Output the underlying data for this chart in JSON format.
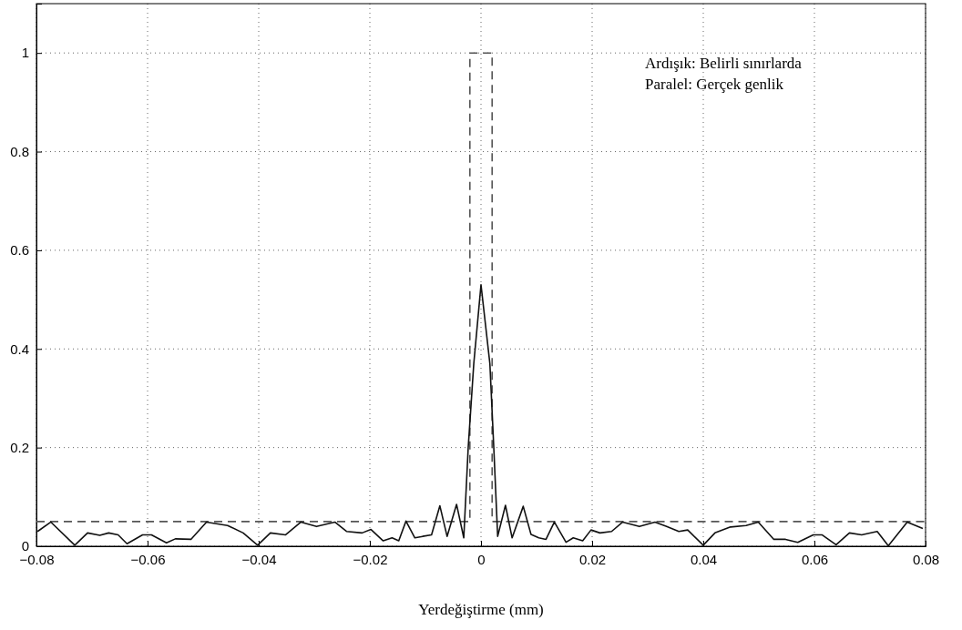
{
  "chart_data": {
    "type": "line",
    "xlabel": "Yerdeğiştirme (mm)",
    "annotations": [
      "Ardışık: Belirli sınırlarda",
      "Paralel: Gerçek genlik"
    ],
    "xlim": [
      -0.08,
      0.08
    ],
    "xticks": [
      -0.08,
      -0.06,
      -0.04,
      -0.02,
      0,
      0.02,
      0.04,
      0.06,
      0.08
    ],
    "ylim": [
      0,
      1.1
    ],
    "yticks": [
      0,
      0.2,
      0.4,
      0.6,
      0.8,
      1
    ],
    "grid": true,
    "series": [
      {
        "color": "#555555",
        "line_style": "dashed",
        "x": [
          -0.08,
          -0.002,
          -0.002,
          0.002,
          0.002,
          0.08
        ],
        "values": [
          0.05,
          0.05,
          1,
          1,
          0.05,
          0.05
        ]
      },
      {
        "color": "#111111",
        "line_style": "solid",
        "x": [
          -0.0798,
          -0.0774,
          -0.0731,
          -0.0708,
          -0.0686,
          -0.067,
          -0.0653,
          -0.0637,
          -0.0609,
          -0.0593,
          -0.0566,
          -0.055,
          -0.0522,
          -0.0494,
          -0.0456,
          -0.0428,
          -0.0402,
          -0.0379,
          -0.0352,
          -0.0324,
          -0.0296,
          -0.0263,
          -0.0242,
          -0.0214,
          -0.0198,
          -0.0176,
          -0.016,
          -0.0148,
          -0.0135,
          -0.0119,
          -0.0105,
          -0.0089,
          -0.0074,
          -0.0061,
          -0.0044,
          -0.0031,
          -0.0023,
          -0.0013,
          0,
          0.0016,
          0.0023,
          0.003,
          0.0044,
          0.0056,
          0.0076,
          0.009,
          0.0104,
          0.0117,
          0.0132,
          0.0153,
          0.0166,
          0.0183,
          0.0198,
          0.0214,
          0.0235,
          0.0255,
          0.0285,
          0.0313,
          0.0334,
          0.0356,
          0.0372,
          0.04,
          0.0421,
          0.0449,
          0.0477,
          0.0499,
          0.0527,
          0.0548,
          0.057,
          0.0598,
          0.0614,
          0.0639,
          0.0663,
          0.0685,
          0.0713,
          0.0733,
          0.0767,
          0.0795
        ],
        "values": [
          0.03,
          0.049,
          0.002,
          0.027,
          0.022,
          0.027,
          0.023,
          0.005,
          0.023,
          0.023,
          0.007,
          0.015,
          0.014,
          0.049,
          0.042,
          0.027,
          0.002,
          0.027,
          0.023,
          0.049,
          0.04,
          0.049,
          0.03,
          0.027,
          0.034,
          0.011,
          0.017,
          0.011,
          0.051,
          0.017,
          0.02,
          0.023,
          0.082,
          0.02,
          0.085,
          0.017,
          0.2,
          0.37,
          0.53,
          0.37,
          0.2,
          0.02,
          0.083,
          0.017,
          0.081,
          0.024,
          0.017,
          0.014,
          0.049,
          0.008,
          0.017,
          0.011,
          0.033,
          0.027,
          0.03,
          0.049,
          0.04,
          0.049,
          0.04,
          0.03,
          0.033,
          0.002,
          0.027,
          0.039,
          0.042,
          0.049,
          0.014,
          0.014,
          0.008,
          0.023,
          0.023,
          0.003,
          0.027,
          0.023,
          0.03,
          0.001,
          0.049,
          0.036
        ]
      }
    ]
  }
}
